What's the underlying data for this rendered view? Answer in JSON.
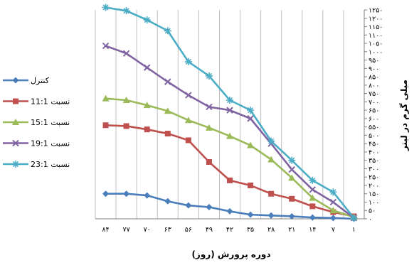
{
  "chart_data": {
    "type": "line",
    "xlabel": "دوره پرورش (روز)",
    "ylabel": "میلی گرم در لیتر",
    "x": [
      "۸۴",
      "۷۷",
      "۷۰",
      "۶۳",
      "۵۶",
      "۴۹",
      "۴۲",
      "۳۵",
      "۲۸",
      "۲۱",
      "۱۴",
      "۷",
      "۱"
    ],
    "ylim": [
      0,
      1250
    ],
    "ystep": 50,
    "ytick_labels": [
      "۰",
      "۵۰",
      "۱۰۰",
      "۱۵۰",
      "۲۰۰",
      "۲۵۰",
      "۳۰۰",
      "۳۵۰",
      "۴۰۰",
      "۴۵۰",
      "۵۰۰",
      "۵۵۰",
      "۶۰۰",
      "۶۵۰",
      "۷۰۰",
      "۷۵۰",
      "۸۰۰",
      "۸۵۰",
      "۹۰۰",
      "۹۵۰",
      "۱۰۰۰",
      "۱۰۵۰",
      "۱۱۰۰",
      "۱۱۵۰",
      "۱۲۰۰",
      "۱۲۵۰"
    ],
    "grid": true,
    "legend_position": "left",
    "series": [
      {
        "name": "کنترل",
        "color": "#4a7ebb",
        "marker": "diamond",
        "values": [
          150,
          150,
          140,
          105,
          80,
          70,
          45,
          25,
          20,
          15,
          8,
          5,
          0
        ]
      },
      {
        "name": "نسبت 11:1",
        "color": "#c0504d",
        "marker": "square",
        "values": [
          560,
          555,
          535,
          510,
          470,
          340,
          230,
          200,
          150,
          120,
          75,
          40,
          15
        ]
      },
      {
        "name": "نسبت 15:1",
        "color": "#9bbb59",
        "marker": "triangle",
        "values": [
          720,
          710,
          680,
          645,
          590,
          545,
          495,
          440,
          355,
          245,
          125,
          50,
          10
        ]
      },
      {
        "name": "نسبت 19:1",
        "color": "#8064a2",
        "marker": "x",
        "values": [
          1035,
          990,
          905,
          820,
          740,
          670,
          650,
          600,
          450,
          295,
          175,
          100,
          5
        ]
      },
      {
        "name": "نسبت 23:1",
        "color": "#4bacc6",
        "marker": "star",
        "values": [
          1265,
          1245,
          1190,
          1125,
          940,
          855,
          710,
          650,
          465,
          350,
          230,
          160,
          5
        ]
      }
    ]
  }
}
